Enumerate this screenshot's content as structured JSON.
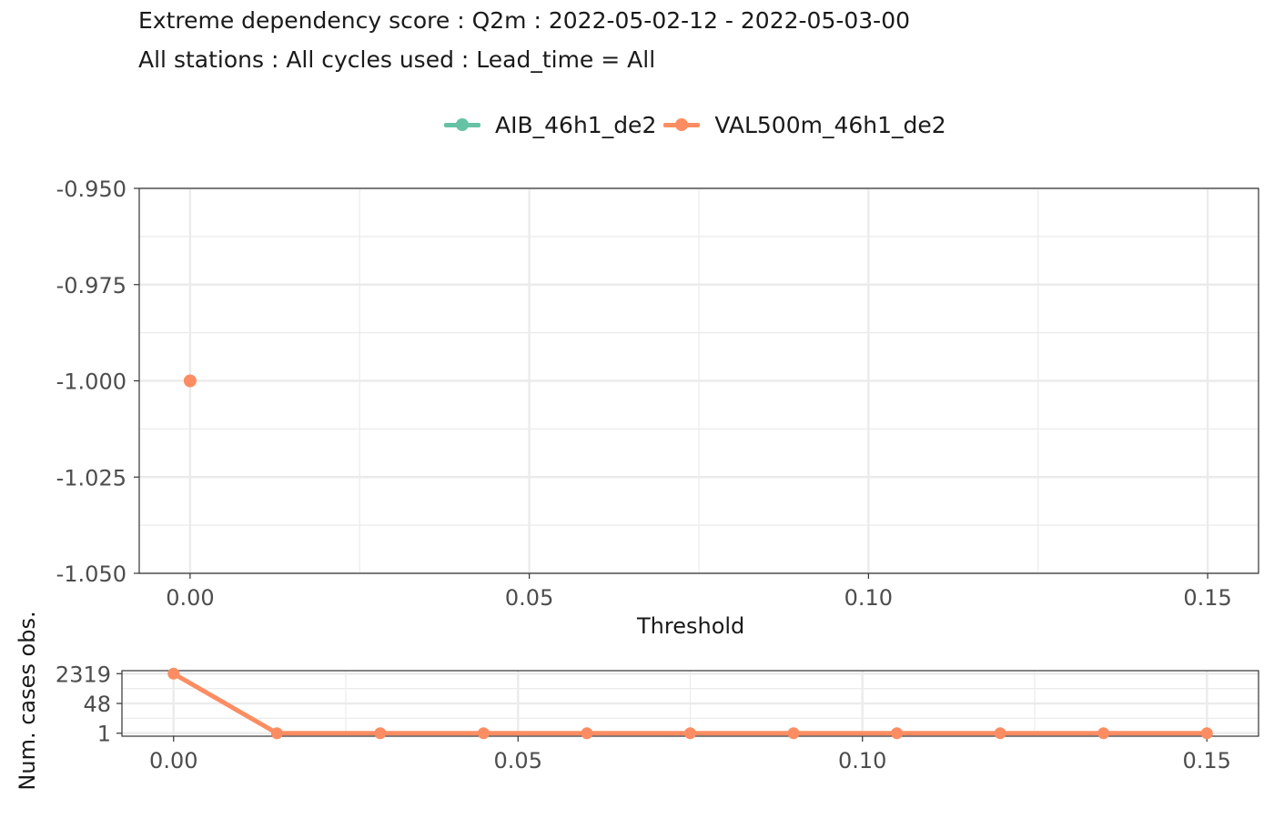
{
  "title": "Extreme dependency score : Q2m : 2022-05-02-12 - 2022-05-03-00",
  "subtitle": "All stations : All cycles used : Lead_time = All",
  "legend": [
    {
      "name": "AIB_46h1_de2",
      "color": "#66c2a5"
    },
    {
      "name": "VAL500m_46h1_de2",
      "color": "#fc8d62"
    }
  ],
  "chart_data": [
    {
      "type": "scatter",
      "title": "Extreme dependency score : Q2m : 2022-05-02-12 - 2022-05-03-00",
      "subtitle": "All stations : All cycles used : Lead_time = All",
      "xlabel": "Threshold",
      "ylabel": "",
      "xlim": [
        -0.0075,
        0.1575
      ],
      "ylim": [
        -1.05,
        -0.95
      ],
      "x_ticks": [
        0.0,
        0.05,
        0.1,
        0.15
      ],
      "x_tick_labels": [
        "0.00",
        "0.05",
        "0.10",
        "0.15"
      ],
      "y_ticks": [
        -0.95,
        -0.975,
        -1.0,
        -1.025,
        -1.05
      ],
      "y_tick_labels": [
        "-0.950",
        "-0.975",
        "-1.000",
        "-1.025",
        "-1.050"
      ],
      "grid": true,
      "legend_position": "top",
      "series": [
        {
          "name": "AIB_46h1_de2",
          "color": "#66c2a5",
          "points": []
        },
        {
          "name": "VAL500m_46h1_de2",
          "color": "#fc8d62",
          "points": [
            {
              "x": 0.0,
              "y": -1.0
            }
          ]
        }
      ]
    },
    {
      "type": "line",
      "title": "",
      "xlabel": "",
      "ylabel": "Num. cases obs.",
      "xlim": [
        -0.0075,
        0.1575
      ],
      "y_scale": "log",
      "y_ticks": [
        1,
        48,
        2319
      ],
      "y_tick_labels": [
        "1",
        "48",
        "2319"
      ],
      "x_ticks": [
        0.0,
        0.05,
        0.1,
        0.15
      ],
      "x_tick_labels": [
        "0.00",
        "0.05",
        "0.10",
        "0.15"
      ],
      "grid": true,
      "series": [
        {
          "name": "VAL500m_46h1_de2",
          "color": "#fc8d62",
          "x": [
            0.0,
            0.015,
            0.03,
            0.045,
            0.06,
            0.075,
            0.09,
            0.105,
            0.12,
            0.135,
            0.15
          ],
          "y": [
            2319,
            1,
            1,
            1,
            1,
            1,
            1,
            1,
            1,
            1,
            1
          ]
        }
      ]
    }
  ]
}
